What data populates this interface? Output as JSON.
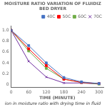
{
  "chart_data": {
    "type": "line",
    "title": "MOISTURE RATIO VARIATION OF FLUIDIZ\nBED DRYER",
    "x_label": "TIME (MINUTE)",
    "caption": "ion in moisture ratio with drying time in fluid",
    "x": [
      0,
      60,
      120,
      180,
      240,
      300
    ],
    "series": [
      {
        "name": "40C",
        "color": "#4472C4",
        "marker": "square",
        "values": [
          1.0,
          0.72,
          0.4,
          0.13,
          0.05,
          0.02
        ]
      },
      {
        "name": "50C",
        "color": "#FF0000",
        "marker": "square",
        "values": [
          1.0,
          0.66,
          0.35,
          0.1,
          0.04,
          0.02
        ]
      },
      {
        "name": "60C",
        "color": "#70AD47",
        "marker": "square",
        "values": [
          1.0,
          0.62,
          0.3,
          0.1,
          0.04,
          0.01
        ]
      },
      {
        "name": "70C",
        "color": "#7030A0",
        "marker": "x",
        "values": [
          1.0,
          0.43,
          0.14,
          0.03,
          0.03,
          0.01
        ]
      }
    ],
    "xlim": [
      0,
      315
    ],
    "ylim": [
      -0.05,
      1.08
    ],
    "xticks": [
      0,
      60,
      120,
      180,
      240,
      300
    ],
    "yticks": [
      0,
      0.2,
      0.4,
      0.6,
      0.8,
      {
        "value": 1.0,
        "label": "1.0"
      }
    ],
    "grid": false,
    "legend": "upper right"
  }
}
